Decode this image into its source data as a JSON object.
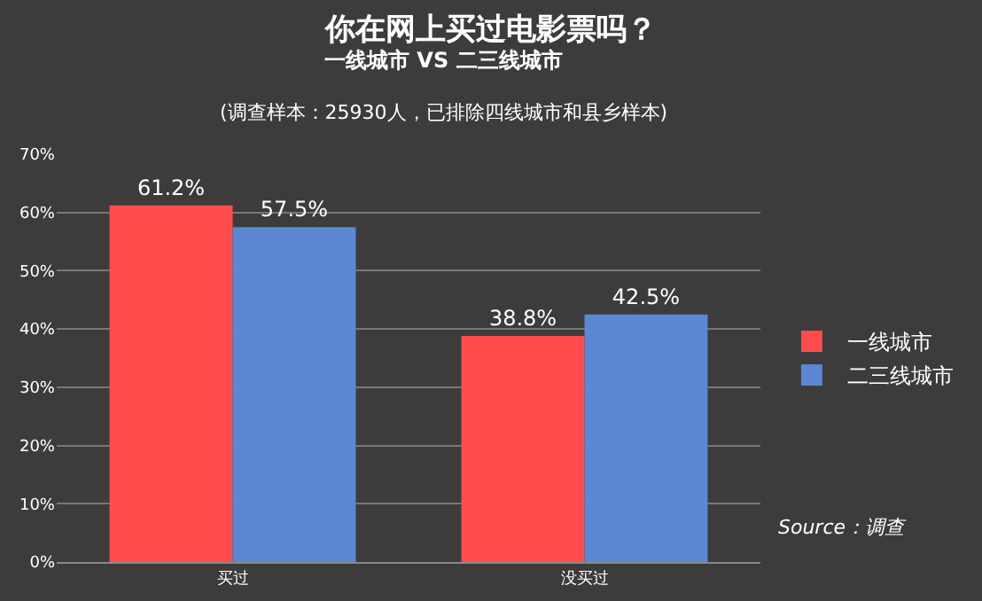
{
  "chart_data": {
    "type": "bar",
    "title": "你在网上买过电影票吗？",
    "subtitle": "一线城市 VS 二三线城市",
    "annotations": [
      "(调查样本：25930人，已排除四线城市和县乡样本)",
      "Source：调查"
    ],
    "categories": [
      "买过",
      "没买过"
    ],
    "series": [
      {
        "name": "一线城市",
        "color": "#ff4d4d",
        "values": [
          61.2,
          38.8
        ],
        "value_labels": [
          "61.2%",
          "38.8%"
        ]
      },
      {
        "name": "二三线城市",
        "color": "#5b87d3",
        "values": [
          57.5,
          42.5
        ],
        "value_labels": [
          "57.5%",
          "42.5%"
        ]
      }
    ],
    "ylim": [
      0,
      70
    ],
    "yticks": [
      {
        "value": 0,
        "label": "0%"
      },
      {
        "value": 10,
        "label": "10%"
      },
      {
        "value": 20,
        "label": "20%"
      },
      {
        "value": 30,
        "label": "30%"
      },
      {
        "value": 40,
        "label": "40%"
      },
      {
        "value": 50,
        "label": "50%"
      },
      {
        "value": 60,
        "label": "60%"
      },
      {
        "value": 70,
        "label": "70%"
      }
    ],
    "grid": "y",
    "legend": "right"
  }
}
